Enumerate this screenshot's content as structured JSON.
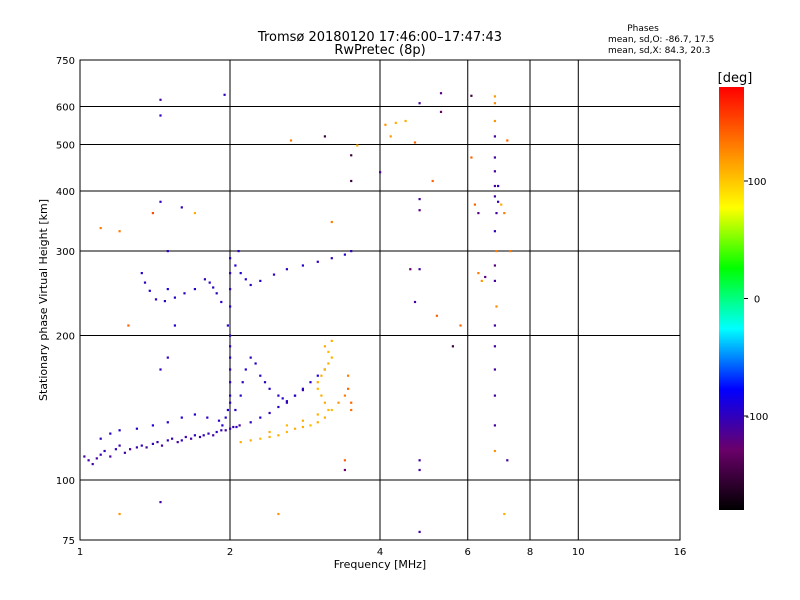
{
  "chart_data": {
    "type": "scatter",
    "title": "Tromsø 20180120 17:46:00–17:47:43",
    "subtitle": "RwPretec (8p)",
    "xlabel": "Frequency [MHz]",
    "ylabel": "Stationary phase Virtual Height [km]",
    "x_scale": "log",
    "y_scale": "log",
    "xlim": [
      1,
      16
    ],
    "ylim": [
      75,
      750
    ],
    "x_ticks": [
      1,
      2,
      4,
      6,
      8,
      10,
      16
    ],
    "y_ticks": [
      75,
      100,
      200,
      300,
      400,
      500,
      600,
      750
    ],
    "grid": true,
    "stats": {
      "heading": "Phases",
      "line_o": "mean, sd,O: -86.7, 17.5",
      "line_x": "mean, sd,X:  84.3, 20.3"
    },
    "colorbar": {
      "title": "[deg]",
      "min": -180,
      "max": 180,
      "ticks": [
        100,
        0,
        -100
      ],
      "colors": [
        "#000000",
        "#6a006a",
        "#0000ff",
        "#00ffff",
        "#00ff00",
        "#ffff00",
        "#ff8000",
        "#ff0000"
      ]
    },
    "series": [
      {
        "points": [
          [
            1.02,
            112,
            -110
          ],
          [
            1.04,
            110,
            -110
          ],
          [
            1.06,
            108,
            -110
          ],
          [
            1.08,
            111,
            -110
          ],
          [
            1.1,
            113,
            -105
          ],
          [
            1.12,
            115,
            -100
          ],
          [
            1.15,
            112,
            -110
          ],
          [
            1.18,
            116,
            -100
          ],
          [
            1.2,
            118,
            -105
          ],
          [
            1.23,
            114,
            -110
          ],
          [
            1.26,
            116,
            -110
          ],
          [
            1.3,
            117,
            -105
          ],
          [
            1.33,
            118,
            -100
          ],
          [
            1.36,
            117,
            -110
          ],
          [
            1.4,
            119,
            -100
          ],
          [
            1.43,
            120,
            -105
          ],
          [
            1.46,
            118,
            -110
          ],
          [
            1.5,
            121,
            -100
          ],
          [
            1.53,
            122,
            -105
          ],
          [
            1.57,
            120,
            -110
          ],
          [
            1.6,
            121,
            -100
          ],
          [
            1.63,
            123,
            -105
          ],
          [
            1.67,
            122,
            -110
          ],
          [
            1.7,
            124,
            -100
          ],
          [
            1.74,
            123,
            -105
          ],
          [
            1.77,
            124,
            -100
          ],
          [
            1.81,
            125,
            -105
          ],
          [
            1.85,
            124,
            -110
          ],
          [
            1.88,
            126,
            -100
          ],
          [
            1.92,
            127,
            -105
          ],
          [
            1.96,
            127,
            -110
          ],
          [
            2.0,
            128,
            -100
          ],
          [
            2.03,
            129,
            -105
          ],
          [
            2.06,
            129,
            -100
          ],
          [
            2.09,
            130,
            -110
          ],
          [
            1.1,
            122,
            -100
          ],
          [
            1.15,
            125,
            -95
          ],
          [
            1.2,
            127,
            -95
          ],
          [
            1.3,
            128,
            -95
          ],
          [
            1.4,
            130,
            -90
          ],
          [
            1.5,
            132,
            -95
          ],
          [
            1.6,
            135,
            -95
          ],
          [
            1.7,
            137,
            -95
          ],
          [
            1.8,
            135,
            -100
          ],
          [
            1.9,
            133,
            -100
          ],
          [
            1.93,
            130,
            -95
          ],
          [
            1.96,
            135,
            -95
          ],
          [
            1.98,
            140,
            -95
          ],
          [
            2.0,
            145,
            -100
          ],
          [
            2.0,
            150,
            -95
          ],
          [
            2.0,
            160,
            -100
          ],
          [
            2.0,
            170,
            -100
          ],
          [
            2.0,
            180,
            -95
          ],
          [
            2.0,
            190,
            -100
          ],
          [
            2.0,
            200,
            -100
          ],
          [
            1.98,
            210,
            -100
          ],
          [
            2.0,
            230,
            -95
          ],
          [
            2.0,
            250,
            -100
          ],
          [
            2.0,
            270,
            -100
          ],
          [
            2.0,
            290,
            -95
          ],
          [
            1.92,
            235,
            -100
          ],
          [
            1.88,
            245,
            -95
          ],
          [
            1.85,
            252,
            -100
          ],
          [
            1.82,
            258,
            -95
          ],
          [
            1.78,
            262,
            -100
          ],
          [
            1.7,
            250,
            -95
          ],
          [
            1.62,
            245,
            -100
          ],
          [
            1.55,
            240,
            -95
          ],
          [
            1.48,
            236,
            -100
          ],
          [
            1.42,
            238,
            -100
          ],
          [
            1.38,
            248,
            -95
          ],
          [
            1.35,
            258,
            -100
          ],
          [
            1.33,
            270,
            -95
          ],
          [
            2.08,
            300,
            -100
          ],
          [
            2.05,
            280,
            -95
          ],
          [
            2.1,
            270,
            -95
          ],
          [
            2.15,
            262,
            -95
          ],
          [
            2.2,
            255,
            -100
          ],
          [
            2.3,
            260,
            -95
          ],
          [
            2.45,
            268,
            -100
          ],
          [
            2.6,
            275,
            -100
          ],
          [
            2.8,
            280,
            -95
          ],
          [
            3.0,
            285,
            -100
          ],
          [
            3.2,
            290,
            -100
          ],
          [
            3.4,
            295,
            -95
          ],
          [
            3.5,
            300,
            -100
          ],
          [
            2.05,
            140,
            -100
          ],
          [
            2.1,
            150,
            -95
          ],
          [
            2.12,
            160,
            -100
          ],
          [
            2.15,
            170,
            -95
          ],
          [
            2.2,
            180,
            -100
          ],
          [
            2.25,
            175,
            -95
          ],
          [
            2.3,
            165,
            -100
          ],
          [
            2.35,
            160,
            -100
          ],
          [
            2.4,
            155,
            -95
          ],
          [
            2.5,
            150,
            -100
          ],
          [
            2.55,
            148,
            -95
          ],
          [
            2.6,
            145,
            -100
          ],
          [
            2.7,
            150,
            -95
          ],
          [
            2.8,
            155,
            -100
          ],
          [
            2.9,
            160,
            -95
          ],
          [
            3.0,
            165,
            -90
          ],
          [
            3.1,
            170,
            -85
          ],
          [
            2.2,
            132,
            -100
          ],
          [
            2.3,
            135,
            -95
          ],
          [
            2.4,
            138,
            -100
          ],
          [
            2.5,
            142,
            -95
          ],
          [
            2.6,
            146,
            -100
          ],
          [
            2.7,
            150,
            -95
          ],
          [
            2.8,
            154,
            -100
          ],
          [
            2.1,
            120,
            110
          ],
          [
            2.2,
            121,
            110
          ],
          [
            2.3,
            122,
            105
          ],
          [
            2.4,
            123,
            110
          ],
          [
            2.5,
            124,
            110
          ],
          [
            2.6,
            126,
            105
          ],
          [
            2.7,
            128,
            110
          ],
          [
            2.8,
            129,
            110
          ],
          [
            2.9,
            130,
            105
          ],
          [
            3.0,
            132,
            110
          ],
          [
            3.1,
            135,
            110
          ],
          [
            3.15,
            140,
            105
          ],
          [
            3.1,
            145,
            110
          ],
          [
            3.05,
            150,
            110
          ],
          [
            3.0,
            155,
            105
          ],
          [
            3.0,
            160,
            110
          ],
          [
            3.05,
            165,
            110
          ],
          [
            3.1,
            170,
            105
          ],
          [
            3.15,
            175,
            110
          ],
          [
            3.2,
            180,
            110
          ],
          [
            3.15,
            185,
            105
          ],
          [
            3.1,
            190,
            110
          ],
          [
            3.2,
            195,
            110
          ],
          [
            2.4,
            126,
            110
          ],
          [
            2.6,
            130,
            105
          ],
          [
            2.8,
            133,
            110
          ],
          [
            3.0,
            137,
            110
          ],
          [
            3.2,
            140,
            105
          ],
          [
            3.3,
            145,
            120
          ],
          [
            3.4,
            150,
            130
          ],
          [
            3.45,
            155,
            140
          ],
          [
            3.5,
            145,
            140
          ],
          [
            3.5,
            140,
            135
          ],
          [
            3.45,
            165,
            130
          ],
          [
            1.5,
            300,
            -100
          ],
          [
            1.5,
            250,
            -90
          ],
          [
            1.55,
            210,
            -95
          ],
          [
            1.5,
            180,
            -100
          ],
          [
            1.45,
            170,
            -100
          ],
          [
            1.25,
            210,
            140
          ],
          [
            1.2,
            330,
            130
          ],
          [
            1.1,
            335,
            130
          ],
          [
            1.4,
            360,
            150
          ],
          [
            1.45,
            380,
            -100
          ],
          [
            1.6,
            370,
            -100
          ],
          [
            1.7,
            360,
            110
          ],
          [
            1.45,
            620,
            -110
          ],
          [
            1.45,
            575,
            -100
          ],
          [
            1.45,
            90,
            -110
          ],
          [
            1.2,
            85,
            120
          ],
          [
            2.5,
            85,
            120
          ],
          [
            1.95,
            635,
            -100
          ],
          [
            2.65,
            510,
            130
          ],
          [
            3.1,
            520,
            -150
          ],
          [
            3.5,
            475,
            -150
          ],
          [
            3.5,
            420,
            -150
          ],
          [
            3.2,
            345,
            130
          ],
          [
            3.6,
            498,
            110
          ],
          [
            4.0,
            438,
            -110
          ],
          [
            4.1,
            550,
            120
          ],
          [
            4.2,
            520,
            120
          ],
          [
            4.3,
            555,
            110
          ],
          [
            4.5,
            560,
            110
          ],
          [
            4.7,
            505,
            140
          ],
          [
            4.8,
            610,
            -110
          ],
          [
            4.8,
            385,
            -110
          ],
          [
            4.8,
            365,
            -120
          ],
          [
            4.8,
            275,
            -110
          ],
          [
            5.1,
            420,
            140
          ],
          [
            5.3,
            640,
            -120
          ],
          [
            5.3,
            585,
            -130
          ],
          [
            5.6,
            190,
            -150
          ],
          [
            5.8,
            210,
            140
          ],
          [
            6.1,
            632,
            -150
          ],
          [
            6.1,
            470,
            140
          ],
          [
            6.2,
            375,
            140
          ],
          [
            6.3,
            360,
            -120
          ],
          [
            6.3,
            270,
            130
          ],
          [
            6.4,
            260,
            120
          ],
          [
            6.5,
            265,
            -120
          ],
          [
            4.6,
            275,
            -130
          ],
          [
            4.7,
            235,
            -110
          ],
          [
            5.2,
            220,
            140
          ],
          [
            6.8,
            630,
            120
          ],
          [
            6.8,
            610,
            125
          ],
          [
            6.8,
            560,
            120
          ],
          [
            6.8,
            520,
            -110
          ],
          [
            6.8,
            470,
            -110
          ],
          [
            6.8,
            440,
            -110
          ],
          [
            6.8,
            410,
            -110
          ],
          [
            6.8,
            390,
            -110
          ],
          [
            6.85,
            360,
            -110
          ],
          [
            6.8,
            330,
            -100
          ],
          [
            6.85,
            300,
            130
          ],
          [
            6.8,
            280,
            -120
          ],
          [
            6.8,
            260,
            -110
          ],
          [
            6.85,
            230,
            125
          ],
          [
            6.8,
            210,
            -110
          ],
          [
            6.8,
            190,
            -110
          ],
          [
            6.8,
            170,
            -110
          ],
          [
            6.8,
            150,
            -110
          ],
          [
            6.8,
            130,
            -110
          ],
          [
            6.8,
            115,
            120
          ],
          [
            6.9,
            380,
            -100
          ],
          [
            7.0,
            375,
            110
          ],
          [
            7.1,
            360,
            130
          ],
          [
            7.2,
            510,
            140
          ],
          [
            7.3,
            300,
            130
          ],
          [
            7.2,
            110,
            -110
          ],
          [
            7.1,
            85,
            110
          ],
          [
            6.9,
            410,
            -100
          ],
          [
            4.8,
            110,
            -110
          ],
          [
            4.8,
            105,
            -110
          ],
          [
            4.8,
            78,
            -110
          ],
          [
            3.4,
            105,
            -130
          ],
          [
            3.4,
            110,
            140
          ]
        ]
      }
    ]
  }
}
